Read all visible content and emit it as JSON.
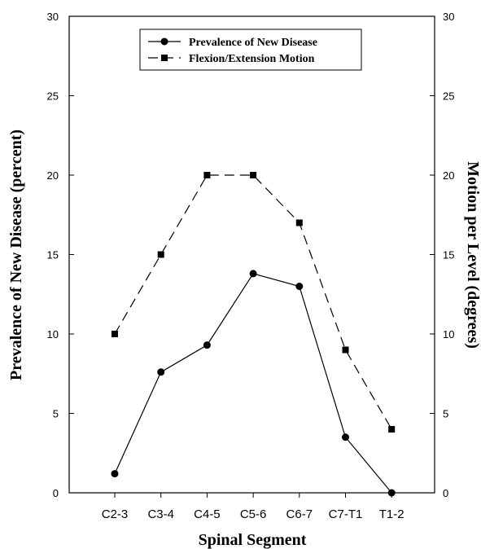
{
  "chart_data": {
    "type": "line",
    "title": "",
    "xlabel": "Spinal Segment",
    "ylabel": "Prevalence of New Disease (percent)",
    "y2label": "Motion per Level (degrees)",
    "categories": [
      "C2-3",
      "C3-4",
      "C4-5",
      "C5-6",
      "C6-7",
      "C7-T1",
      "T1-2"
    ],
    "ylim": [
      0,
      30
    ],
    "y2lim": [
      0,
      30
    ],
    "yticks": [
      0,
      5,
      10,
      15,
      20,
      25,
      30
    ],
    "y2ticks": [
      0,
      5,
      10,
      15,
      20,
      25,
      30
    ],
    "grid": false,
    "legend_position": "top-center",
    "series": [
      {
        "name": "Prevalence of New Disease",
        "axis": "left",
        "marker": "circle",
        "line_style": "solid",
        "color": "#000000",
        "values": [
          1.2,
          7.6,
          9.3,
          13.8,
          13.0,
          3.5,
          0.0
        ]
      },
      {
        "name": "Flexion/Extension Motion",
        "axis": "right",
        "marker": "square",
        "line_style": "dashed",
        "color": "#000000",
        "values": [
          10,
          15,
          20,
          20,
          17,
          9,
          4
        ]
      }
    ]
  }
}
